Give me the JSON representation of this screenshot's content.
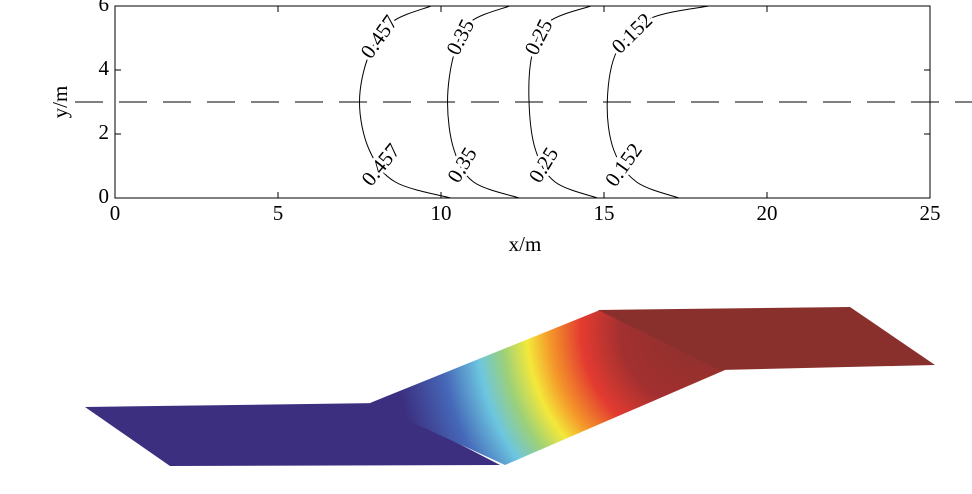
{
  "chart_data": {
    "type": "contour",
    "xlabel": "x/m",
    "ylabel": "y/m",
    "xlim": [
      0,
      25
    ],
    "ylim": [
      0,
      6
    ],
    "xticks": [
      0,
      5,
      10,
      15,
      20,
      25
    ],
    "yticks": [
      0,
      2,
      4,
      6
    ],
    "centerline": 3,
    "series": [
      {
        "name": "0.457",
        "color": "#000000",
        "x": [
          9.7,
          8.5,
          7.8,
          7.5,
          7.8,
          8.6,
          10.3
        ],
        "y": [
          6,
          5.5,
          4.5,
          3,
          1.5,
          0.5,
          0
        ]
      },
      {
        "name": "0.35",
        "color": "#000000",
        "x": [
          12.1,
          10.9,
          10.4,
          10.2,
          10.4,
          11.0,
          12.4
        ],
        "y": [
          6,
          5.5,
          4.5,
          3,
          1.5,
          0.5,
          0
        ]
      },
      {
        "name": "0.25",
        "color": "#000000",
        "x": [
          14.6,
          13.3,
          12.8,
          12.7,
          12.9,
          13.5,
          14.8
        ],
        "y": [
          6,
          5.5,
          4.5,
          3,
          1.5,
          0.5,
          0
        ]
      },
      {
        "name": "0.152",
        "color": "#000000",
        "x": [
          18.2,
          16.4,
          15.4,
          15.1,
          15.3,
          16.0,
          17.3
        ],
        "y": [
          6,
          5.6,
          4.6,
          3,
          1.5,
          0.5,
          0
        ]
      }
    ]
  }
}
